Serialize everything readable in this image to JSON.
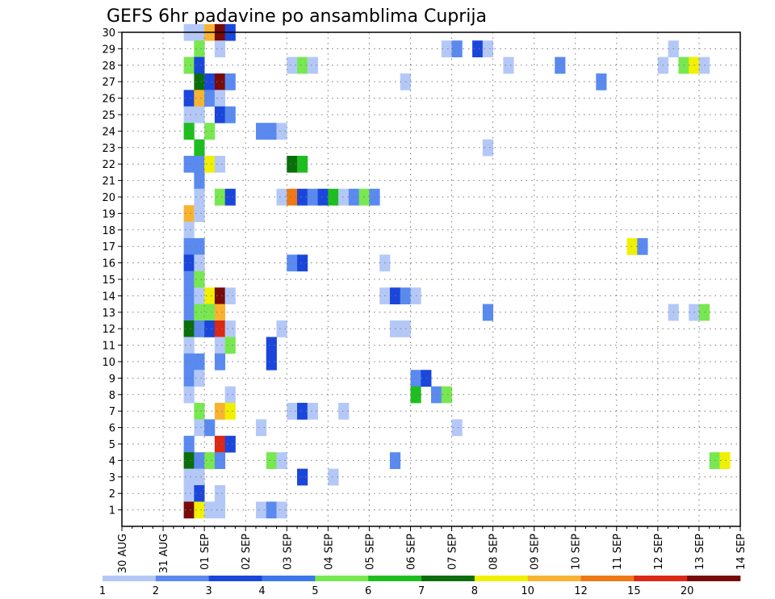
{
  "chart_data": {
    "type": "heatmap",
    "title": "GEFS 6hr padavine po ansamblima Cuprija",
    "xlabel": "",
    "ylabel": "",
    "x_ticks": [
      "30 AUG",
      "31 AUG",
      "01 SEP",
      "02 SEP",
      "03 SEP",
      "04 SEP",
      "05 SEP",
      "06 SEP",
      "07 SEP",
      "08 SEP",
      "09 SEP",
      "10 SEP",
      "11 SEP",
      "12 SEP",
      "13 SEP",
      "14 SEP"
    ],
    "y_ticks": [
      "30",
      "29",
      "28",
      "27",
      "26",
      "25",
      "24",
      "23",
      "22",
      "21",
      "20",
      "19",
      "18",
      "17",
      "16",
      "15",
      "14",
      "13",
      "12",
      "11",
      "10",
      "9",
      "8",
      "7",
      "6",
      "5",
      "4",
      "3",
      "2",
      "1"
    ],
    "time_steps_per_day": 4,
    "grid": true,
    "colorbar": {
      "labels": [
        "1",
        "2",
        "3",
        "4",
        "5",
        "6",
        "7",
        "8",
        "10",
        "12",
        "15",
        "20"
      ],
      "colors": [
        "#b4c8f8",
        "#5a8af0",
        "#1a46dc",
        "#3c78ec",
        "#78e850",
        "#1ebe1e",
        "#0a6e0a",
        "#f0f000",
        "#f8b430",
        "#f07814",
        "#dc2814",
        "#780a0a"
      ]
    },
    "cells": [
      [
        30,
        6,
        0
      ],
      [
        30,
        7,
        0
      ],
      [
        30,
        8,
        8
      ],
      [
        30,
        9,
        11
      ],
      [
        30,
        10,
        2
      ],
      [
        29,
        7,
        4
      ],
      [
        29,
        9,
        0
      ],
      [
        29,
        31,
        0
      ],
      [
        29,
        32,
        1
      ],
      [
        29,
        34,
        2
      ],
      [
        29,
        35,
        0
      ],
      [
        29,
        53,
        0
      ],
      [
        28,
        6,
        4
      ],
      [
        28,
        7,
        2
      ],
      [
        28,
        16,
        0
      ],
      [
        28,
        17,
        4
      ],
      [
        28,
        18,
        0
      ],
      [
        28,
        37,
        0
      ],
      [
        28,
        42,
        1
      ],
      [
        28,
        52,
        0
      ],
      [
        28,
        54,
        4
      ],
      [
        28,
        55,
        7
      ],
      [
        28,
        56,
        0
      ],
      [
        27,
        7,
        6
      ],
      [
        27,
        8,
        2
      ],
      [
        27,
        9,
        11
      ],
      [
        27,
        10,
        1
      ],
      [
        27,
        27,
        0
      ],
      [
        27,
        46,
        1
      ],
      [
        26,
        6,
        2
      ],
      [
        26,
        7,
        8
      ],
      [
        26,
        8,
        1
      ],
      [
        26,
        9,
        0
      ],
      [
        25,
        6,
        0
      ],
      [
        25,
        7,
        0
      ],
      [
        25,
        9,
        2
      ],
      [
        25,
        10,
        1
      ],
      [
        24,
        6,
        5
      ],
      [
        24,
        8,
        4
      ],
      [
        24,
        13,
        1
      ],
      [
        24,
        14,
        1
      ],
      [
        24,
        15,
        0
      ],
      [
        23,
        7,
        5
      ],
      [
        23,
        35,
        0
      ],
      [
        22,
        6,
        1
      ],
      [
        22,
        7,
        1
      ],
      [
        22,
        8,
        7
      ],
      [
        22,
        9,
        0
      ],
      [
        22,
        16,
        6
      ],
      [
        22,
        17,
        5
      ],
      [
        21,
        7,
        1
      ],
      [
        20,
        7,
        0
      ],
      [
        20,
        9,
        4
      ],
      [
        20,
        10,
        2
      ],
      [
        20,
        15,
        0
      ],
      [
        20,
        16,
        9
      ],
      [
        20,
        17,
        2
      ],
      [
        20,
        18,
        1
      ],
      [
        20,
        19,
        2
      ],
      [
        20,
        20,
        5
      ],
      [
        20,
        21,
        0
      ],
      [
        20,
        22,
        1
      ],
      [
        20,
        23,
        4
      ],
      [
        20,
        24,
        1
      ],
      [
        19,
        6,
        8
      ],
      [
        19,
        7,
        0
      ],
      [
        18,
        6,
        0
      ],
      [
        17,
        6,
        1
      ],
      [
        17,
        7,
        1
      ],
      [
        17,
        49,
        7
      ],
      [
        17,
        50,
        1
      ],
      [
        16,
        6,
        2
      ],
      [
        16,
        7,
        0
      ],
      [
        16,
        16,
        1
      ],
      [
        16,
        17,
        2
      ],
      [
        16,
        25,
        0
      ],
      [
        15,
        6,
        1
      ],
      [
        15,
        7,
        4
      ],
      [
        14,
        6,
        1
      ],
      [
        14,
        7,
        0
      ],
      [
        14,
        8,
        7
      ],
      [
        14,
        9,
        11
      ],
      [
        14,
        10,
        0
      ],
      [
        14,
        25,
        0
      ],
      [
        14,
        26,
        2
      ],
      [
        14,
        27,
        1
      ],
      [
        14,
        28,
        0
      ],
      [
        13,
        6,
        1
      ],
      [
        13,
        7,
        4
      ],
      [
        13,
        8,
        4
      ],
      [
        13,
        9,
        8
      ],
      [
        13,
        35,
        1
      ],
      [
        13,
        53,
        0
      ],
      [
        13,
        55,
        0
      ],
      [
        13,
        56,
        4
      ],
      [
        12,
        6,
        6
      ],
      [
        12,
        7,
        1
      ],
      [
        12,
        8,
        2
      ],
      [
        12,
        9,
        10
      ],
      [
        12,
        10,
        0
      ],
      [
        12,
        15,
        0
      ],
      [
        12,
        26,
        0
      ],
      [
        12,
        27,
        0
      ],
      [
        11,
        6,
        0
      ],
      [
        11,
        9,
        0
      ],
      [
        11,
        10,
        4
      ],
      [
        11,
        14,
        2
      ],
      [
        10,
        6,
        1
      ],
      [
        10,
        7,
        1
      ],
      [
        10,
        9,
        1
      ],
      [
        10,
        14,
        2
      ],
      [
        9,
        6,
        1
      ],
      [
        9,
        7,
        0
      ],
      [
        9,
        28,
        1
      ],
      [
        9,
        29,
        2
      ],
      [
        8,
        6,
        0
      ],
      [
        8,
        10,
        0
      ],
      [
        8,
        28,
        5
      ],
      [
        8,
        30,
        1
      ],
      [
        8,
        31,
        4
      ],
      [
        7,
        7,
        4
      ],
      [
        7,
        9,
        8
      ],
      [
        7,
        10,
        7
      ],
      [
        7,
        16,
        0
      ],
      [
        7,
        17,
        2
      ],
      [
        7,
        18,
        0
      ],
      [
        7,
        21,
        0
      ],
      [
        6,
        7,
        0
      ],
      [
        6,
        8,
        1
      ],
      [
        6,
        13,
        0
      ],
      [
        6,
        32,
        0
      ],
      [
        5,
        6,
        1
      ],
      [
        5,
        9,
        10
      ],
      [
        5,
        10,
        2
      ],
      [
        4,
        6,
        6
      ],
      [
        4,
        7,
        1
      ],
      [
        4,
        8,
        4
      ],
      [
        4,
        9,
        1
      ],
      [
        4,
        14,
        4
      ],
      [
        4,
        15,
        0
      ],
      [
        4,
        26,
        1
      ],
      [
        4,
        57,
        4
      ],
      [
        4,
        58,
        7
      ],
      [
        3,
        6,
        0
      ],
      [
        3,
        7,
        0
      ],
      [
        3,
        17,
        2
      ],
      [
        3,
        20,
        0
      ],
      [
        2,
        6,
        0
      ],
      [
        2,
        7,
        2
      ],
      [
        2,
        9,
        0
      ],
      [
        1,
        6,
        11
      ],
      [
        1,
        7,
        7
      ],
      [
        1,
        8,
        0
      ],
      [
        1,
        9,
        0
      ],
      [
        1,
        13,
        0
      ],
      [
        1,
        14,
        1
      ],
      [
        1,
        15,
        0
      ]
    ]
  }
}
